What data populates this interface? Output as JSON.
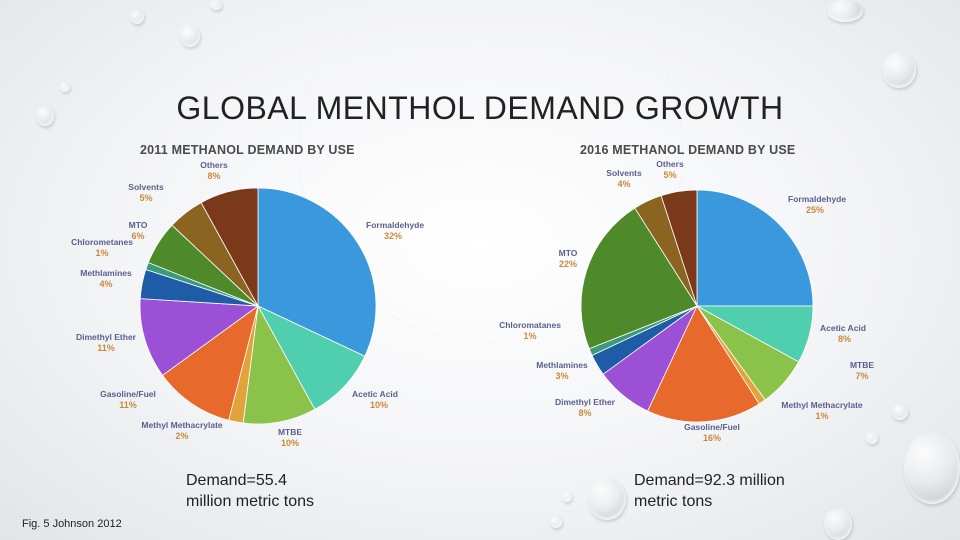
{
  "slide": {
    "title": "GLOBAL MENTHOL DEMAND GROWTH",
    "footnote": "Fig. 5 Johnson 2012"
  },
  "chart_data": [
    {
      "type": "pie",
      "title": "2011 METHANOL DEMAND BY USE",
      "caption_line1": "Demand=55.4",
      "caption_line2": "million metric tons",
      "slices": [
        {
          "label": "Formaldehyde",
          "pct_text": "32%",
          "value": 32,
          "color": "#3a98dd"
        },
        {
          "label": "Acetic Acid",
          "pct_text": "10%",
          "value": 10,
          "color": "#4fcfae"
        },
        {
          "label": "MTBE",
          "pct_text": "10%",
          "value": 10,
          "color": "#8bc34a"
        },
        {
          "label": "Methyl Methacrylate",
          "pct_text": "2%",
          "value": 2,
          "color": "#e3a33b"
        },
        {
          "label": "Gasoline/Fuel",
          "pct_text": "11%",
          "value": 11,
          "color": "#e8692c"
        },
        {
          "label": "Dimethyl Ether",
          "pct_text": "11%",
          "value": 11,
          "color": "#9b50d6"
        },
        {
          "label": "Methlamines",
          "pct_text": "4%",
          "value": 4,
          "color": "#1f5ca8"
        },
        {
          "label": "Chlorometanes",
          "pct_text": "1%",
          "value": 1,
          "color": "#3c9a7a"
        },
        {
          "label": "MTO",
          "pct_text": "6%",
          "value": 6,
          "color": "#4f8a2a"
        },
        {
          "label": "Solvents",
          "pct_text": "5%",
          "value": 5,
          "color": "#8a6420"
        },
        {
          "label": "Others",
          "pct_text": "8%",
          "value": 8,
          "color": "#7a3a1a"
        }
      ]
    },
    {
      "type": "pie",
      "title": "2016 METHANOL DEMAND BY USE",
      "caption_line1": "Demand=92.3 million",
      "caption_line2": "metric tons",
      "slices": [
        {
          "label": "Formaldehyde",
          "pct_text": "25%",
          "value": 25,
          "color": "#3a98dd"
        },
        {
          "label": "Acetic Acid",
          "pct_text": "8%",
          "value": 8,
          "color": "#4fcfae"
        },
        {
          "label": "MTBE",
          "pct_text": "7%",
          "value": 7,
          "color": "#8bc34a"
        },
        {
          "label": "Methyl Methacrylate",
          "pct_text": "1%",
          "value": 1,
          "color": "#e3a33b"
        },
        {
          "label": "Gasoline/Fuel",
          "pct_text": "16%",
          "value": 16,
          "color": "#e8692c"
        },
        {
          "label": "Dimethyl Ether",
          "pct_text": "8%",
          "value": 8,
          "color": "#9b50d6"
        },
        {
          "label": "Methlamines",
          "pct_text": "3%",
          "value": 3,
          "color": "#1f5ca8"
        },
        {
          "label": "Chloromatanes",
          "pct_text": "1%",
          "value": 1,
          "color": "#3c9a7a"
        },
        {
          "label": "MTO",
          "pct_text": "22%",
          "value": 22,
          "color": "#4f8a2a"
        },
        {
          "label": "Solvents",
          "pct_text": "4%",
          "value": 4,
          "color": "#8a6420"
        },
        {
          "label": "Others",
          "pct_text": "5%",
          "value": 5,
          "color": "#7a3a1a"
        }
      ]
    }
  ]
}
